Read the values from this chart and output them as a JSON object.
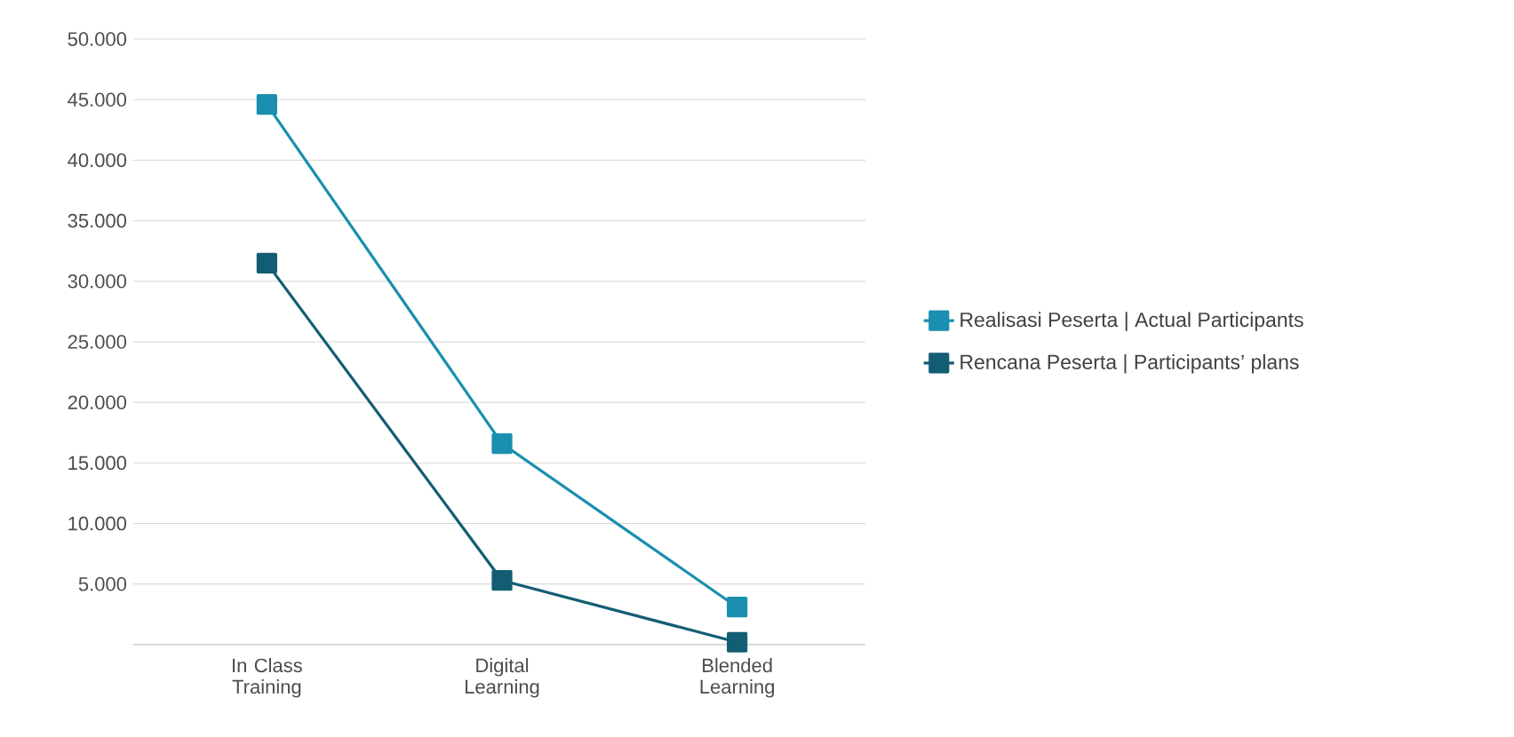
{
  "chart_data": {
    "type": "line",
    "categories": [
      "In Class Training",
      "Digital Learning",
      "Blended Learning"
    ],
    "series": [
      {
        "name": "Realisasi Peserta | Actual Participants",
        "color": "#1a8fb0",
        "values": [
          44600,
          16600,
          3100
        ]
      },
      {
        "name": "Rencana Peserta | Participants’ plans",
        "color": "#135d74",
        "values": [
          31500,
          5300,
          200
        ]
      }
    ],
    "ylim": [
      0,
      50000
    ],
    "yticks": [
      {
        "value": 5000,
        "label": "5.000"
      },
      {
        "value": 10000,
        "label": "10.000"
      },
      {
        "value": 15000,
        "label": "15.000"
      },
      {
        "value": 20000,
        "label": "20.000"
      },
      {
        "value": 25000,
        "label": "25.000"
      },
      {
        "value": 30000,
        "label": "30.000"
      },
      {
        "value": 35000,
        "label": "35.000"
      },
      {
        "value": 40000,
        "label": "40.000"
      },
      {
        "value": 45000,
        "label": "45.000"
      },
      {
        "value": 50000,
        "label": "50.000"
      }
    ],
    "grid": "y",
    "legend": "right",
    "marker": "square",
    "line_style": "solid"
  }
}
